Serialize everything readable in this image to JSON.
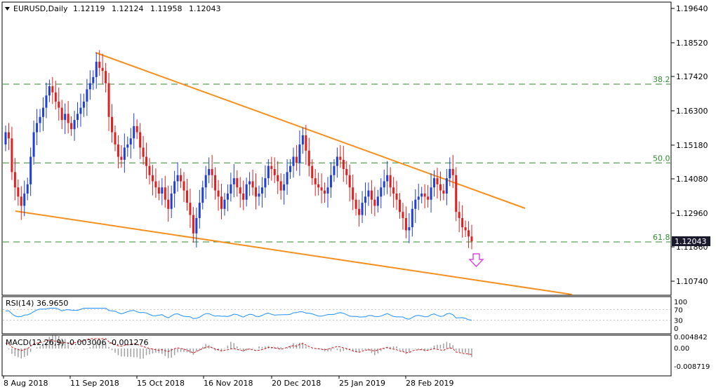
{
  "header": {
    "symbol_label": "EURUSD,Daily",
    "open": "1.12119",
    "high": "1.12124",
    "low": "1.11958",
    "close": "1.12043"
  },
  "price_axis": {
    "ticks": [
      "1.19640",
      "1.18520",
      "1.17420",
      "1.16300",
      "1.15180",
      "1.14080",
      "1.12960",
      "1.11860",
      "1.10740"
    ],
    "current_price": "1.12043"
  },
  "fibonacci": {
    "levels": [
      {
        "label": "38.2",
        "value": 1.1717
      },
      {
        "label": "50.0",
        "value": 1.146
      },
      {
        "label": "61.8",
        "value": 1.1202
      }
    ]
  },
  "date_axis": {
    "labels": [
      "8 Aug 2018",
      "11 Sep 2018",
      "15 Oct 2018",
      "16 Nov 2018",
      "20 Dec 2018",
      "25 Jan 2019",
      "28 Feb 2019"
    ]
  },
  "rsi": {
    "label": "RSI(14) 36.9650",
    "ticks": [
      "100",
      "70",
      "30",
      "0"
    ]
  },
  "macd": {
    "label": "MACD(12,26,9) -0.003006 -0.001276",
    "ticks": [
      "0.004842",
      "0.00",
      "-0.008719"
    ]
  },
  "colors": {
    "bull": "#1f3fd6",
    "bear": "#e01f1f",
    "trendline": "#f5901e",
    "fib": "#2e8b2e",
    "rsi_line": "#1e90ff",
    "macd_signal": "#cc1111",
    "macd_hist": "#a0a0a0",
    "arrow": "#e040e0",
    "price_tag": "#1a1a2e"
  },
  "chart_data": {
    "type": "candlestick",
    "title": "EURUSD,Daily",
    "ylim": [
      1.1024,
      1.1995
    ],
    "x_start": "8 Aug 2018",
    "close_series": [
      1.156,
      1.154,
      1.143,
      1.138,
      1.135,
      1.132,
      1.136,
      1.139,
      1.148,
      1.156,
      1.159,
      1.161,
      1.164,
      1.168,
      1.171,
      1.169,
      1.166,
      1.164,
      1.16,
      1.162,
      1.159,
      1.157,
      1.16,
      1.162,
      1.164,
      1.166,
      1.17,
      1.172,
      1.174,
      1.179,
      1.177,
      1.176,
      1.172,
      1.161,
      1.156,
      1.152,
      1.148,
      1.147,
      1.151,
      1.152,
      1.154,
      1.158,
      1.156,
      1.151,
      1.148,
      1.145,
      1.142,
      1.14,
      1.138,
      1.136,
      1.138,
      1.134,
      1.131,
      1.136,
      1.14,
      1.142,
      1.14,
      1.137,
      1.133,
      1.129,
      1.123,
      1.128,
      1.133,
      1.138,
      1.142,
      1.144,
      1.142,
      1.137,
      1.135,
      1.131,
      1.134,
      1.136,
      1.139,
      1.141,
      1.138,
      1.136,
      1.134,
      1.139,
      1.14,
      1.138,
      1.135,
      1.136,
      1.138,
      1.141,
      1.145,
      1.144,
      1.142,
      1.14,
      1.137,
      1.139,
      1.143,
      1.145,
      1.148,
      1.146,
      1.152,
      1.155,
      1.15,
      1.145,
      1.141,
      1.139,
      1.138,
      1.137,
      1.136,
      1.138,
      1.142,
      1.145,
      1.148,
      1.147,
      1.144,
      1.142,
      1.138,
      1.134,
      1.131,
      1.129,
      1.133,
      1.135,
      1.137,
      1.134,
      1.132,
      1.135,
      1.138,
      1.14,
      1.142,
      1.138,
      1.136,
      1.134,
      1.13,
      1.128,
      1.124,
      1.125,
      1.131,
      1.134,
      1.135,
      1.136,
      1.135,
      1.134,
      1.138,
      1.141,
      1.139,
      1.137,
      1.136,
      1.141,
      1.144,
      1.142,
      1.13,
      1.128,
      1.125,
      1.124,
      1.122,
      1.1204
    ]
  }
}
